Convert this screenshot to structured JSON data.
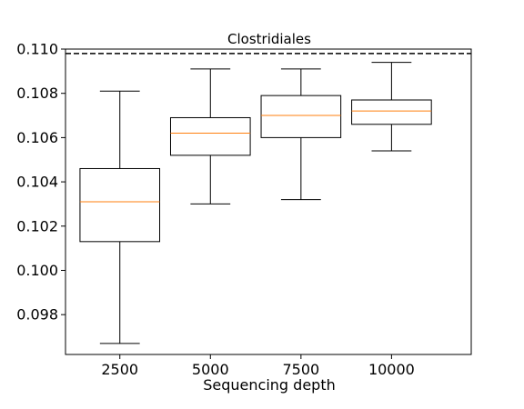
{
  "chart_data": {
    "type": "box",
    "title": "Clostridiales",
    "xlabel": "Sequencing depth",
    "ylabel": "",
    "categories": [
      "2500",
      "5000",
      "7500",
      "10000"
    ],
    "boxes": [
      {
        "category": "2500",
        "whisker_low": 0.0967,
        "q1": 0.1013,
        "median": 0.1031,
        "q3": 0.1046,
        "whisker_high": 0.1081
      },
      {
        "category": "5000",
        "whisker_low": 0.103,
        "q1": 0.1052,
        "median": 0.1062,
        "q3": 0.1069,
        "whisker_high": 0.1091
      },
      {
        "category": "7500",
        "whisker_low": 0.1032,
        "q1": 0.106,
        "median": 0.107,
        "q3": 0.1079,
        "whisker_high": 0.1091
      },
      {
        "category": "10000",
        "whisker_low": 0.1054,
        "q1": 0.1066,
        "median": 0.1072,
        "q3": 0.1077,
        "whisker_high": 0.1094
      }
    ],
    "reference_line": {
      "value": 0.1098,
      "style": "dashed",
      "color": "#000000"
    },
    "yticks": [
      "0.098",
      "0.100",
      "0.102",
      "0.104",
      "0.106",
      "0.108",
      "0.110"
    ],
    "ylim": [
      0.0962,
      0.11
    ],
    "grid": false,
    "colors": {
      "box": "#000000",
      "median": "#ff7f0e",
      "axes": "#000000"
    }
  }
}
